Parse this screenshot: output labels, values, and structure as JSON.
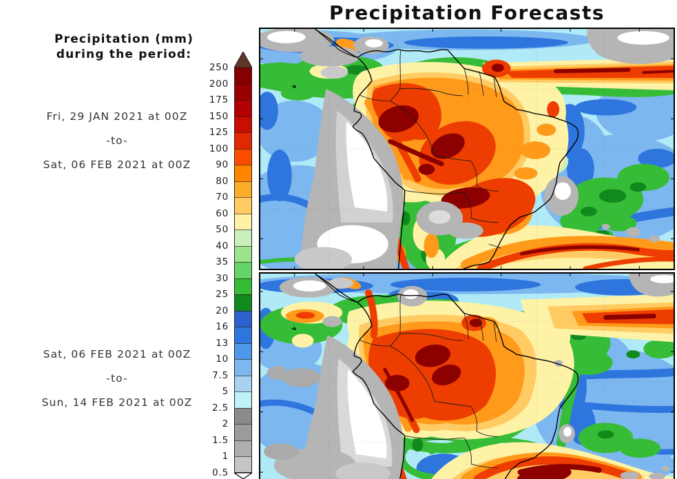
{
  "title": "Precipitation Forecasts",
  "legend": {
    "heading_line1": "Precipitation (mm)",
    "heading_line2": "during the period:"
  },
  "panels": [
    {
      "label_from": "Fri, 29 JAN 2021 at 00Z",
      "separator": "-to-",
      "label_to": "Sat, 06 FEB 2021 at 00Z"
    },
    {
      "label_from": "Sat, 06 FEB 2021 at 00Z",
      "separator": "-to-",
      "label_to": "Sun, 14 FEB 2021 at 00Z"
    }
  ],
  "colorbar": {
    "unit": "mm",
    "levels": [
      "250",
      "200",
      "175",
      "150",
      "125",
      "100",
      "90",
      "80",
      "70",
      "60",
      "50",
      "40",
      "35",
      "30",
      "25",
      "20",
      "16",
      "13",
      "10",
      "7.5",
      "5",
      "2.5",
      "2",
      "1.5",
      "1",
      "0.5"
    ],
    "cell_colors": [
      "#870000",
      "#9a0000",
      "#b30000",
      "#ca0d00",
      "#e22800",
      "#fb4d00",
      "#ff8500",
      "#fbac28",
      "#ffcb62",
      "#fdf2a6",
      "#c9efbd",
      "#9be38c",
      "#65d365",
      "#37bc37",
      "#118a1d",
      "#2b62ce",
      "#2e76de",
      "#4d98e9",
      "#7db7ef",
      "#a7d2f2",
      "#c0f1f7",
      "#8a8a8a",
      "#9b9b9b",
      "#aeaeae",
      "#c5c5c5"
    ],
    "over_arrow_color": "#5e3526",
    "under_arrow_color": "#ffffff"
  },
  "maps": {
    "region": "South America",
    "ocean_color": "#b0eaf6"
  }
}
